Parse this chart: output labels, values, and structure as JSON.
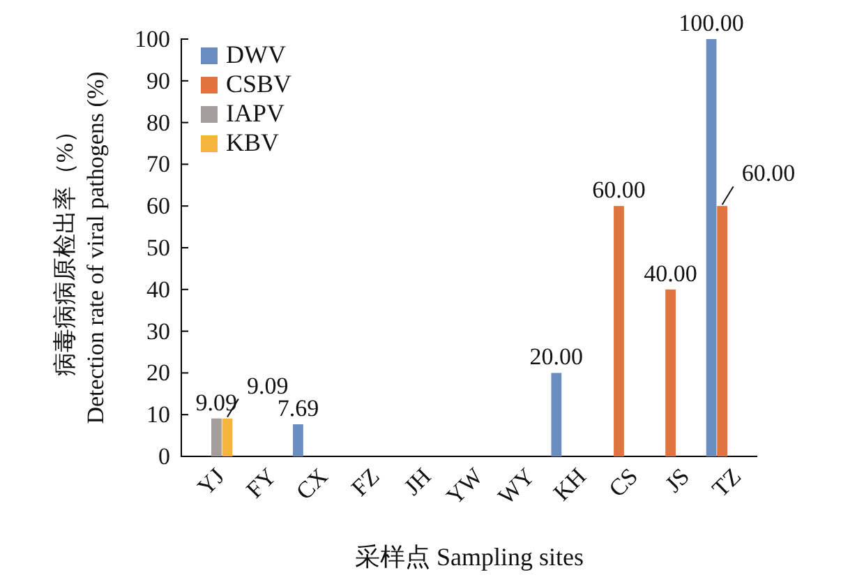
{
  "chart_data": {
    "type": "bar",
    "xlabel": "采样点 Sampling sites",
    "ylabel": "病毒病病原检出率（%）\nDetection rate of viral pathogens (%)",
    "categories": [
      "YJ",
      "FY",
      "CX",
      "FZ",
      "JH",
      "YW",
      "WY",
      "KH",
      "CS",
      "JS",
      "TZ"
    ],
    "series": [
      {
        "name": "DWV",
        "color": "#6a8ebf",
        "values": [
          0,
          0,
          7.69,
          0,
          0,
          0,
          0,
          20,
          0,
          0,
          100
        ],
        "value_labels": [
          null,
          null,
          "7.69",
          null,
          null,
          null,
          null,
          "20.00",
          null,
          null,
          "100.00"
        ]
      },
      {
        "name": "CSBV",
        "color": "#e0743f",
        "values": [
          0,
          0,
          0,
          0,
          0,
          0,
          0,
          0,
          60,
          40,
          60
        ],
        "value_labels": [
          null,
          null,
          null,
          null,
          null,
          null,
          null,
          null,
          "60.00",
          "40.00",
          "60.00"
        ]
      },
      {
        "name": "IAPV",
        "color": "#a39e9b",
        "values": [
          9.09,
          0,
          0,
          0,
          0,
          0,
          0,
          0,
          0,
          0,
          0
        ],
        "value_labels": [
          "9.09",
          null,
          null,
          null,
          null,
          null,
          null,
          null,
          null,
          null,
          null
        ]
      },
      {
        "name": "KBV",
        "color": "#f5b43c",
        "values": [
          9.09,
          0,
          0,
          0,
          0,
          0,
          0,
          0,
          0,
          0,
          0
        ],
        "value_labels": [
          "9.09",
          null,
          null,
          null,
          null,
          null,
          null,
          null,
          null,
          null,
          null
        ]
      }
    ],
    "ylim": [
      0,
      100
    ],
    "yticks": [
      0,
      10,
      20,
      30,
      40,
      50,
      60,
      70,
      80,
      90,
      100
    ],
    "grid": false,
    "legend": "top left"
  }
}
